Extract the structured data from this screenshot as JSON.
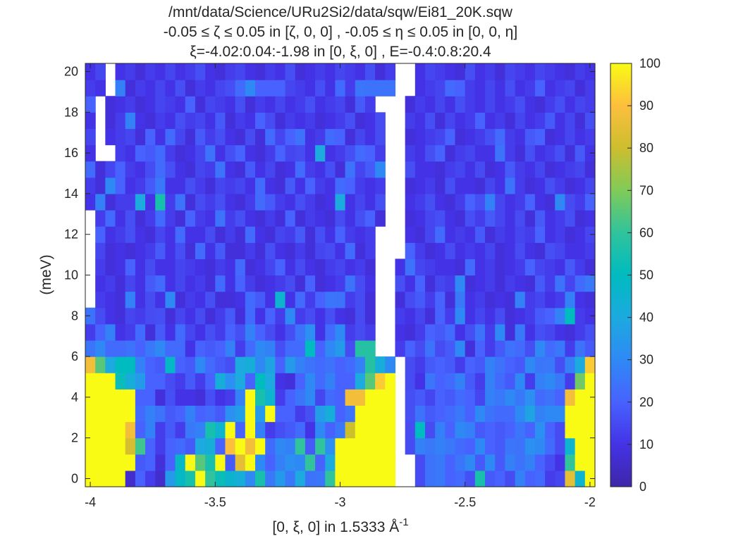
{
  "chart_data": {
    "type": "heatmap",
    "title": [
      "/mnt/data/Science/URu2Si2/data/sqw/Ei81_20K.sqw",
      "-0.05 ≤ ζ ≤ 0.05 in [ζ, 0, 0] , -0.05 ≤ η ≤ 0.05 in [0, 0, η]",
      "ξ=-4.02:0.04:-1.98 in [0, ξ, 0] , E=-0.4:0.8:20.4"
    ],
    "xlabel": "[0, ξ, 0] in 1.5333 Å",
    "xlabel_superscript": "-1",
    "ylabel": "(meV)",
    "xlim": [
      -4.02,
      -1.98
    ],
    "ylim": [
      -0.4,
      20.4
    ],
    "x_step": 0.04,
    "y_step": 0.8,
    "x_ticks": [
      -4,
      -3.5,
      -3,
      -2.5,
      -2
    ],
    "y_ticks": [
      0,
      2,
      4,
      6,
      8,
      10,
      12,
      14,
      16,
      18,
      20
    ],
    "colorbar": {
      "min": 0,
      "max": 100,
      "ticks": [
        0,
        10,
        20,
        30,
        40,
        50,
        60,
        70,
        80,
        90,
        100
      ],
      "colormap": "parula"
    },
    "rows_energy_meV": [
      0,
      0.8,
      1.6,
      2.4,
      3.2,
      4.0,
      4.8,
      5.6,
      6.4,
      7.2,
      8.0,
      8.8,
      9.6,
      10.4,
      11.2,
      12.0,
      12.8,
      13.6,
      14.4,
      15.2,
      16.0,
      16.8,
      17.6,
      18.4,
      19.2,
      20.0
    ],
    "intensity": [
      [
        100,
        100,
        100,
        100,
        6,
        20,
        12,
        6,
        35,
        48,
        55,
        100,
        60,
        52,
        46,
        42,
        30,
        55,
        26,
        35,
        26,
        40,
        24,
        25,
        60,
        100,
        100,
        100,
        100,
        100,
        100,
        null,
        null,
        15,
        24,
        26,
        20,
        22,
        16,
        55,
        18,
        20,
        15,
        28,
        20,
        22,
        12,
        14,
        85,
        45,
        100,
        100
      ],
      [
        100,
        100,
        100,
        100,
        100,
        18,
        20,
        8,
        20,
        48,
        100,
        65,
        55,
        100,
        18,
        85,
        100,
        30,
        20,
        28,
        32,
        30,
        60,
        20,
        40,
        100,
        100,
        100,
        100,
        100,
        100,
        null,
        null,
        15,
        24,
        26,
        20,
        25,
        30,
        18,
        30,
        18,
        28,
        24,
        28,
        20,
        15,
        10,
        60,
        100,
        100,
        100
      ],
      [
        100,
        100,
        100,
        100,
        82,
        62,
        20,
        12,
        20,
        22,
        18,
        40,
        42,
        20,
        90,
        100,
        88,
        100,
        22,
        30,
        28,
        60,
        18,
        60,
        32,
        100,
        100,
        100,
        100,
        100,
        100,
        null,
        15,
        28,
        26,
        28,
        26,
        22,
        20,
        30,
        20,
        18,
        25,
        24,
        32,
        30,
        22,
        15,
        45,
        100,
        100,
        100
      ],
      [
        100,
        100,
        100,
        100,
        88,
        20,
        28,
        12,
        18,
        12,
        26,
        28,
        55,
        45,
        100,
        20,
        100,
        28,
        12,
        16,
        18,
        22,
        10,
        30,
        20,
        26,
        80,
        100,
        100,
        100,
        100,
        null,
        15,
        50,
        15,
        28,
        20,
        30,
        28,
        18,
        20,
        18,
        20,
        25,
        20,
        32,
        20,
        15,
        100,
        100,
        100,
        100
      ],
      [
        100,
        100,
        100,
        100,
        100,
        22,
        28,
        24,
        18,
        20,
        28,
        20,
        22,
        18,
        32,
        36,
        100,
        35,
        100,
        20,
        20,
        12,
        16,
        36,
        42,
        20,
        24,
        100,
        100,
        100,
        100,
        null,
        16,
        24,
        18,
        20,
        22,
        26,
        20,
        30,
        24,
        22,
        22,
        30,
        38,
        28,
        30,
        30,
        100,
        100,
        100,
        100
      ],
      [
        100,
        100,
        100,
        100,
        100,
        20,
        20,
        8,
        16,
        10,
        10,
        8,
        16,
        10,
        12,
        28,
        100,
        55,
        45,
        12,
        20,
        25,
        30,
        14,
        22,
        20,
        88,
        88,
        100,
        100,
        100,
        null,
        16,
        18,
        14,
        20,
        18,
        22,
        20,
        14,
        28,
        26,
        30,
        26,
        32,
        22,
        24,
        20,
        88,
        100,
        100,
        100
      ],
      [
        100,
        100,
        100,
        52,
        42,
        35,
        20,
        20,
        15,
        12,
        18,
        12,
        20,
        42,
        32,
        40,
        20,
        50,
        40,
        10,
        8,
        20,
        30,
        22,
        28,
        20,
        20,
        40,
        65,
        92,
        100,
        null,
        15,
        10,
        25,
        20,
        22,
        28,
        18,
        12,
        28,
        22,
        18,
        30,
        12,
        28,
        30,
        26,
        12,
        68,
        100,
        62
      ],
      [
        88,
        65,
        40,
        50,
        50,
        28,
        20,
        18,
        48,
        20,
        18,
        30,
        22,
        18,
        16,
        40,
        42,
        30,
        38,
        20,
        35,
        28,
        24,
        22,
        24,
        20,
        22,
        28,
        58,
        42,
        30,
        null,
        15,
        12,
        18,
        20,
        18,
        12,
        20,
        18,
        28,
        24,
        20,
        18,
        30,
        25,
        26,
        16,
        28,
        40,
        92,
        40
      ],
      [
        25,
        30,
        22,
        22,
        24,
        20,
        26,
        30,
        22,
        22,
        10,
        20,
        18,
        20,
        28,
        12,
        22,
        30,
        28,
        16,
        22,
        22,
        50,
        20,
        30,
        35,
        15,
        58,
        58,
        null,
        null,
        12,
        20,
        15,
        24,
        15,
        18,
        30,
        8,
        20,
        12,
        18,
        24,
        22,
        16,
        30,
        22,
        26,
        12,
        24,
        18,
        8
      ],
      [
        12,
        20,
        28,
        10,
        12,
        22,
        8,
        18,
        10,
        22,
        14,
        10,
        16,
        12,
        20,
        16,
        28,
        20,
        15,
        10,
        16,
        24,
        32,
        10,
        22,
        30,
        12,
        15,
        12,
        null,
        null,
        10,
        8,
        12,
        20,
        18,
        22,
        10,
        16,
        24,
        12,
        30,
        8,
        26,
        10,
        16,
        14,
        10,
        8,
        12,
        16,
        20
      ],
      [
        24,
        15,
        10,
        8,
        14,
        12,
        15,
        16,
        8,
        14,
        10,
        15,
        8,
        12,
        18,
        8,
        22,
        10,
        20,
        12,
        30,
        12,
        15,
        10,
        16,
        10,
        8,
        15,
        8,
        null,
        null,
        12,
        10,
        14,
        8,
        20,
        12,
        30,
        10,
        14,
        10,
        15,
        8,
        10,
        12,
        18,
        20,
        28,
        50,
        12,
        10,
        8
      ],
      [
        null,
        12,
        10,
        8,
        28,
        10,
        15,
        10,
        30,
        8,
        12,
        10,
        16,
        8,
        8,
        10,
        22,
        18,
        10,
        45,
        10,
        22,
        12,
        20,
        25,
        24,
        12,
        15,
        8,
        null,
        null,
        8,
        15,
        18,
        12,
        20,
        8,
        26,
        10,
        12,
        8,
        10,
        8,
        28,
        12,
        14,
        10,
        12,
        28,
        10,
        8,
        15
      ],
      [
        null,
        10,
        12,
        8,
        14,
        10,
        18,
        22,
        10,
        14,
        10,
        12,
        8,
        22,
        10,
        20,
        12,
        8,
        10,
        12,
        15,
        8,
        20,
        8,
        10,
        12,
        24,
        15,
        10,
        null,
        null,
        16,
        10,
        20,
        8,
        14,
        12,
        30,
        8,
        10,
        12,
        8,
        12,
        10,
        8,
        18,
        12,
        24,
        14,
        22,
        26,
        10
      ],
      [
        null,
        12,
        8,
        10,
        20,
        10,
        15,
        10,
        10,
        14,
        12,
        10,
        8,
        12,
        10,
        22,
        8,
        10,
        14,
        20,
        10,
        15,
        10,
        8,
        12,
        14,
        10,
        12,
        8,
        null,
        null,
        10,
        24,
        14,
        12,
        10,
        10,
        8,
        22,
        10,
        12,
        8,
        10,
        12,
        20,
        14,
        12,
        10,
        18,
        12,
        8,
        10
      ],
      [
        null,
        14,
        8,
        10,
        8,
        10,
        12,
        18,
        10,
        16,
        8,
        22,
        10,
        18,
        8,
        8,
        12,
        8,
        16,
        10,
        8,
        12,
        8,
        14,
        15,
        10,
        22,
        8,
        12,
        null,
        null,
        null,
        20,
        12,
        8,
        10,
        15,
        10,
        12,
        10,
        14,
        8,
        10,
        15,
        10,
        8,
        16,
        14,
        10,
        10,
        12,
        8
      ],
      [
        null,
        20,
        10,
        12,
        16,
        10,
        8,
        14,
        10,
        22,
        10,
        10,
        15,
        8,
        12,
        8,
        22,
        10,
        8,
        14,
        12,
        18,
        8,
        16,
        10,
        20,
        12,
        10,
        12,
        null,
        null,
        null,
        10,
        8,
        14,
        22,
        10,
        12,
        10,
        18,
        8,
        12,
        10,
        14,
        12,
        20,
        10,
        12,
        8,
        10,
        14,
        10
      ],
      [
        null,
        12,
        22,
        10,
        16,
        8,
        12,
        22,
        12,
        8,
        20,
        12,
        10,
        24,
        12,
        16,
        10,
        8,
        12,
        8,
        20,
        8,
        12,
        10,
        8,
        15,
        10,
        16,
        20,
        8,
        null,
        null,
        8,
        10,
        14,
        16,
        10,
        8,
        16,
        12,
        18,
        14,
        10,
        15,
        8,
        18,
        10,
        12,
        16,
        8,
        10,
        12
      ],
      [
        10,
        28,
        8,
        12,
        12,
        40,
        10,
        55,
        12,
        24,
        8,
        15,
        12,
        16,
        10,
        8,
        12,
        22,
        18,
        12,
        10,
        16,
        12,
        8,
        10,
        40,
        10,
        14,
        10,
        16,
        null,
        null,
        10,
        12,
        16,
        10,
        8,
        12,
        20,
        16,
        28,
        14,
        10,
        12,
        20,
        10,
        8,
        30,
        15,
        12,
        20,
        10
      ],
      [
        12,
        8,
        30,
        20,
        10,
        12,
        18,
        26,
        10,
        10,
        16,
        12,
        8,
        14,
        12,
        14,
        10,
        22,
        10,
        8,
        18,
        10,
        20,
        12,
        10,
        22,
        20,
        12,
        10,
        12,
        null,
        null,
        8,
        10,
        12,
        8,
        16,
        10,
        10,
        8,
        14,
        10,
        24,
        12,
        8,
        10,
        16,
        12,
        8,
        10,
        14,
        12
      ],
      [
        22,
        8,
        14,
        20,
        12,
        10,
        15,
        22,
        16,
        10,
        8,
        14,
        12,
        24,
        10,
        8,
        18,
        10,
        14,
        8,
        10,
        22,
        12,
        10,
        16,
        8,
        24,
        14,
        18,
        30,
        null,
        null,
        16,
        10,
        10,
        8,
        12,
        14,
        10,
        15,
        8,
        10,
        18,
        12,
        10,
        14,
        8,
        10,
        12,
        14,
        8,
        10
      ],
      [
        10,
        null,
        null,
        12,
        10,
        20,
        18,
        22,
        12,
        8,
        10,
        14,
        24,
        10,
        16,
        20,
        10,
        8,
        12,
        20,
        14,
        15,
        10,
        40,
        10,
        12,
        16,
        22,
        20,
        12,
        null,
        null,
        12,
        10,
        16,
        20,
        8,
        12,
        14,
        10,
        10,
        24,
        12,
        8,
        16,
        10,
        12,
        16,
        8,
        18,
        10,
        12
      ],
      [
        14,
        null,
        10,
        12,
        14,
        8,
        20,
        10,
        22,
        14,
        8,
        18,
        12,
        16,
        10,
        8,
        15,
        8,
        22,
        14,
        20,
        24,
        10,
        12,
        22,
        20,
        8,
        14,
        10,
        15,
        null,
        null,
        8,
        10,
        12,
        14,
        20,
        8,
        10,
        12,
        16,
        22,
        12,
        10,
        18,
        20,
        8,
        10,
        14,
        10,
        12,
        10
      ],
      [
        10,
        null,
        8,
        12,
        28,
        10,
        8,
        12,
        10,
        16,
        12,
        14,
        10,
        18,
        8,
        12,
        10,
        20,
        15,
        8,
        12,
        10,
        12,
        8,
        10,
        12,
        16,
        8,
        10,
        15,
        null,
        null,
        12,
        10,
        16,
        8,
        14,
        10,
        12,
        20,
        10,
        12,
        8,
        14,
        10,
        12,
        18,
        10,
        14,
        8,
        16,
        12
      ],
      [
        20,
        null,
        8,
        10,
        12,
        8,
        10,
        14,
        12,
        10,
        20,
        8,
        14,
        12,
        10,
        16,
        8,
        12,
        10,
        14,
        10,
        12,
        16,
        10,
        12,
        14,
        8,
        18,
        12,
        null,
        null,
        null,
        8,
        12,
        10,
        14,
        10,
        16,
        12,
        10,
        14,
        10,
        12,
        16,
        10,
        8,
        12,
        16,
        10,
        14,
        12,
        10
      ],
      [
        12,
        10,
        null,
        28,
        8,
        12,
        10,
        14,
        10,
        16,
        8,
        12,
        10,
        14,
        16,
        22,
        30,
        20,
        20,
        20,
        14,
        12,
        10,
        16,
        10,
        22,
        12,
        25,
        24,
        24,
        24,
        null,
        null,
        10,
        12,
        14,
        22,
        20,
        12,
        10,
        14,
        10,
        16,
        10,
        12,
        20,
        10,
        12,
        14,
        8,
        12,
        10
      ],
      [
        10,
        14,
        null,
        10,
        12,
        8,
        12,
        10,
        14,
        10,
        12,
        16,
        10,
        8,
        12,
        14,
        10,
        8,
        12,
        10,
        16,
        8,
        10,
        12,
        10,
        14,
        12,
        10,
        16,
        8,
        12,
        null,
        null,
        10,
        14,
        12,
        10,
        8,
        16,
        10,
        12,
        8,
        14,
        12,
        10,
        14,
        12,
        10,
        8,
        12,
        10,
        14
      ]
    ]
  }
}
